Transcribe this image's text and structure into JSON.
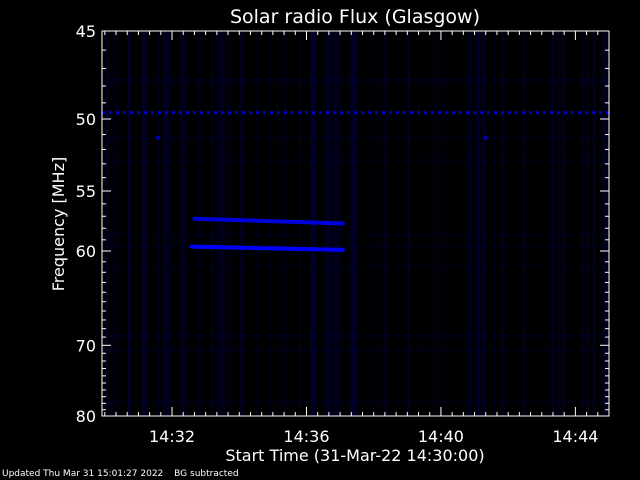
{
  "chart_data": {
    "type": "heatmap",
    "title": "Solar radio Flux (Glasgow)",
    "xlabel": "Start Time (31-Mar-22 14:30:00)",
    "ylabel": "Frequency [MHz]",
    "x_unit": "time",
    "x_range": [
      "14:29:55",
      "14:45:00"
    ],
    "x_ticks": [
      "14:32",
      "14:36",
      "14:40",
      "14:44"
    ],
    "y_range": [
      45,
      80
    ],
    "y_ticks": [
      45,
      50,
      55,
      60,
      70,
      80
    ],
    "y_scale": "reciprocal",
    "background": "#000000",
    "colormap": [
      "#000000",
      "#000033",
      "#0000ff"
    ],
    "features": [
      {
        "kind": "interference-line",
        "freq_mhz": 49.6,
        "start": "14:29:55",
        "end": "14:45:00",
        "intensity": 0.75
      },
      {
        "kind": "burst",
        "freq_start_mhz": 59.6,
        "freq_end_mhz": 59.9,
        "start": "14:32:35",
        "end": "14:37:05",
        "intensity": 1.0
      },
      {
        "kind": "burst",
        "freq_start_mhz": 57.2,
        "freq_end_mhz": 57.6,
        "start": "14:32:40",
        "end": "14:37:05",
        "intensity": 0.85
      },
      {
        "kind": "spot",
        "freq_mhz": 51.2,
        "time": "14:31:35",
        "intensity": 0.7
      },
      {
        "kind": "spot",
        "freq_mhz": 51.2,
        "time": "14:41:20",
        "intensity": 0.7
      }
    ]
  },
  "footer": {
    "updated": "Updated Thu Mar 31 15:01:27 2022",
    "note": "BG subtracted"
  }
}
